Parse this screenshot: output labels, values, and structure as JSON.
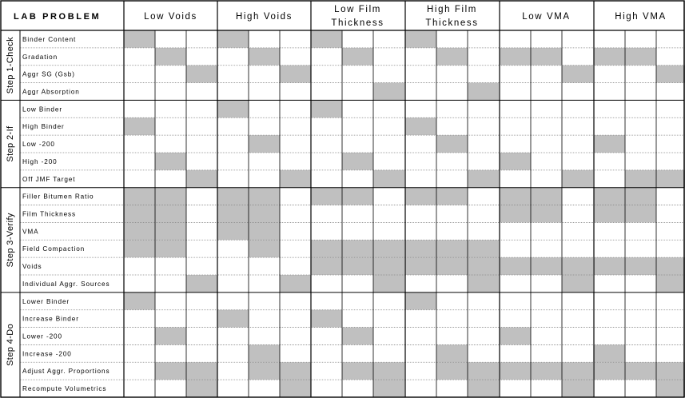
{
  "title": "LAB PROBLEM",
  "columns": [
    {
      "label": [
        "Low Voids"
      ]
    },
    {
      "label": [
        "High Voids"
      ]
    },
    {
      "label": [
        "Low Film",
        "Thickness"
      ]
    },
    {
      "label": [
        "High Film",
        "Thickness"
      ]
    },
    {
      "label": [
        "Low VMA"
      ]
    },
    {
      "label": [
        "High VMA"
      ]
    }
  ],
  "steps": [
    {
      "label": "Step 1-Check",
      "rows": [
        {
          "label": "Binder Content",
          "cells": [
            [
              1,
              0,
              0
            ],
            [
              1,
              0,
              0
            ],
            [
              1,
              0,
              0
            ],
            [
              1,
              0,
              0
            ],
            [
              0,
              0,
              0
            ],
            [
              0,
              0,
              0
            ]
          ]
        },
        {
          "label": "Gradation",
          "cells": [
            [
              0,
              1,
              0
            ],
            [
              0,
              1,
              0
            ],
            [
              0,
              1,
              0
            ],
            [
              0,
              1,
              0
            ],
            [
              1,
              1,
              0
            ],
            [
              1,
              1,
              0
            ]
          ]
        },
        {
          "label": "Aggr SG (Gsb)",
          "cells": [
            [
              0,
              0,
              1
            ],
            [
              0,
              0,
              1
            ],
            [
              0,
              0,
              0
            ],
            [
              0,
              0,
              0
            ],
            [
              0,
              0,
              1
            ],
            [
              0,
              0,
              1
            ]
          ]
        },
        {
          "label": "Aggr Absorption",
          "cells": [
            [
              0,
              0,
              0
            ],
            [
              0,
              0,
              0
            ],
            [
              0,
              0,
              1
            ],
            [
              0,
              0,
              1
            ],
            [
              0,
              0,
              0
            ],
            [
              0,
              0,
              0
            ]
          ]
        }
      ]
    },
    {
      "label": "Step 2-If",
      "rows": [
        {
          "label": "Low Binder",
          "cells": [
            [
              0,
              0,
              0
            ],
            [
              1,
              0,
              0
            ],
            [
              1,
              0,
              0
            ],
            [
              0,
              0,
              0
            ],
            [
              0,
              0,
              0
            ],
            [
              0,
              0,
              0
            ]
          ]
        },
        {
          "label": "High Binder",
          "cells": [
            [
              1,
              0,
              0
            ],
            [
              0,
              0,
              0
            ],
            [
              0,
              0,
              0
            ],
            [
              1,
              0,
              0
            ],
            [
              0,
              0,
              0
            ],
            [
              0,
              0,
              0
            ]
          ]
        },
        {
          "label": "Low -200",
          "cells": [
            [
              0,
              0,
              0
            ],
            [
              0,
              1,
              0
            ],
            [
              0,
              0,
              0
            ],
            [
              0,
              1,
              0
            ],
            [
              0,
              0,
              0
            ],
            [
              1,
              0,
              0
            ]
          ]
        },
        {
          "label": "High -200",
          "cells": [
            [
              0,
              1,
              0
            ],
            [
              0,
              0,
              0
            ],
            [
              0,
              1,
              0
            ],
            [
              0,
              0,
              0
            ],
            [
              1,
              0,
              0
            ],
            [
              0,
              0,
              0
            ]
          ]
        },
        {
          "label": "Off JMF Target",
          "cells": [
            [
              0,
              0,
              1
            ],
            [
              0,
              0,
              1
            ],
            [
              0,
              0,
              1
            ],
            [
              0,
              0,
              1
            ],
            [
              0,
              0,
              1
            ],
            [
              0,
              1,
              1
            ]
          ]
        }
      ]
    },
    {
      "label": "Step 3-Verify",
      "rows": [
        {
          "label": "Filler Bitumen Ratio",
          "cells": [
            [
              1,
              1,
              0
            ],
            [
              1,
              1,
              0
            ],
            [
              1,
              1,
              0
            ],
            [
              1,
              1,
              0
            ],
            [
              1,
              1,
              0
            ],
            [
              1,
              1,
              0
            ]
          ]
        },
        {
          "label": "Film Thickness",
          "cells": [
            [
              1,
              1,
              0
            ],
            [
              1,
              1,
              0
            ],
            [
              0,
              0,
              0
            ],
            [
              0,
              0,
              0
            ],
            [
              1,
              1,
              0
            ],
            [
              1,
              1,
              0
            ]
          ]
        },
        {
          "label": "VMA",
          "cells": [
            [
              1,
              1,
              0
            ],
            [
              1,
              1,
              0
            ],
            [
              0,
              0,
              0
            ],
            [
              0,
              0,
              0
            ],
            [
              0,
              0,
              0
            ],
            [
              0,
              0,
              0
            ]
          ]
        },
        {
          "label": "Field Compaction",
          "cells": [
            [
              1,
              1,
              0
            ],
            [
              0,
              1,
              0
            ],
            [
              1,
              1,
              1
            ],
            [
              1,
              1,
              1
            ],
            [
              0,
              0,
              0
            ],
            [
              0,
              0,
              0
            ]
          ]
        },
        {
          "label": "Voids",
          "cells": [
            [
              0,
              0,
              0
            ],
            [
              0,
              0,
              0
            ],
            [
              1,
              1,
              1
            ],
            [
              1,
              1,
              1
            ],
            [
              1,
              1,
              1
            ],
            [
              1,
              1,
              1
            ]
          ]
        },
        {
          "label": "Individual Aggr. Sources",
          "cells": [
            [
              0,
              0,
              1
            ],
            [
              0,
              0,
              1
            ],
            [
              0,
              0,
              1
            ],
            [
              0,
              0,
              1
            ],
            [
              0,
              0,
              1
            ],
            [
              0,
              0,
              1
            ]
          ]
        }
      ]
    },
    {
      "label": "Step 4-Do",
      "rows": [
        {
          "label": "Lower Binder",
          "cells": [
            [
              1,
              0,
              0
            ],
            [
              0,
              0,
              0
            ],
            [
              0,
              0,
              0
            ],
            [
              1,
              0,
              0
            ],
            [
              0,
              0,
              0
            ],
            [
              0,
              0,
              0
            ]
          ]
        },
        {
          "label": "Increase Binder",
          "cells": [
            [
              0,
              0,
              0
            ],
            [
              1,
              0,
              0
            ],
            [
              1,
              0,
              0
            ],
            [
              0,
              0,
              0
            ],
            [
              0,
              0,
              0
            ],
            [
              0,
              0,
              0
            ]
          ]
        },
        {
          "label": "Lower -200",
          "cells": [
            [
              0,
              1,
              0
            ],
            [
              0,
              0,
              0
            ],
            [
              0,
              1,
              0
            ],
            [
              0,
              0,
              0
            ],
            [
              1,
              0,
              0
            ],
            [
              0,
              0,
              0
            ]
          ]
        },
        {
          "label": "Increase -200",
          "cells": [
            [
              0,
              0,
              0
            ],
            [
              0,
              1,
              0
            ],
            [
              0,
              0,
              0
            ],
            [
              0,
              1,
              0
            ],
            [
              0,
              0,
              0
            ],
            [
              1,
              0,
              0
            ]
          ]
        },
        {
          "label": "Adjust Aggr. Proportions",
          "cells": [
            [
              0,
              1,
              1
            ],
            [
              0,
              1,
              1
            ],
            [
              0,
              1,
              1
            ],
            [
              0,
              1,
              1
            ],
            [
              1,
              1,
              1
            ],
            [
              1,
              1,
              1
            ]
          ]
        },
        {
          "label": "Recompute Volumetrics",
          "cells": [
            [
              0,
              0,
              1
            ],
            [
              0,
              0,
              1
            ],
            [
              0,
              0,
              1
            ],
            [
              0,
              0,
              1
            ],
            [
              0,
              0,
              1
            ],
            [
              0,
              0,
              1
            ]
          ]
        }
      ]
    }
  ],
  "colors": {
    "shaded": "#c0c0c0",
    "blank": "#ffffff",
    "line": "#000000",
    "row_divider": "#8a8a8a"
  }
}
